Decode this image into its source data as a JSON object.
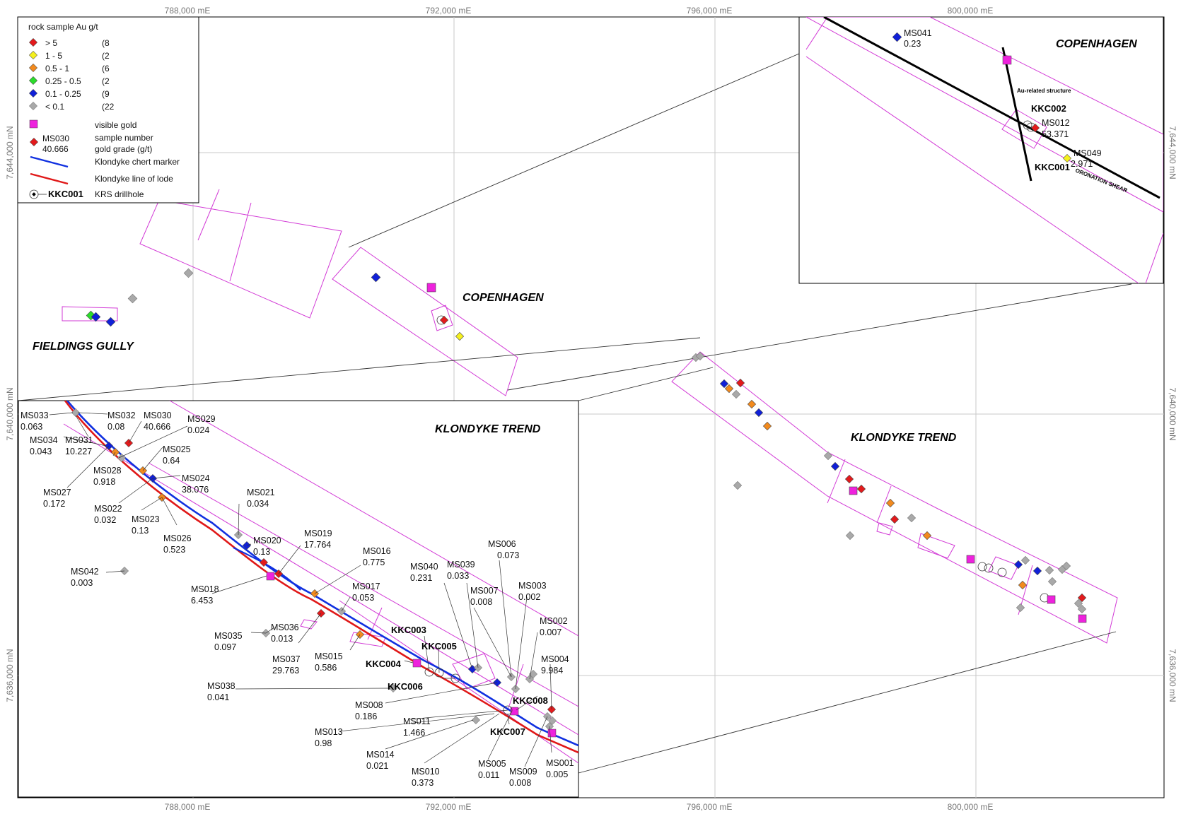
{
  "legend": {
    "title": "rock sample Au g/t",
    "classes": [
      {
        "label": "> 5",
        "count": "(8",
        "color": "#e31a1c"
      },
      {
        "label": "1    - 5",
        "count": "(2",
        "color": "#f5f01e"
      },
      {
        "label": "0.5   - 1",
        "count": "(6",
        "color": "#f28a1e"
      },
      {
        "label": "0.25 - 0.5",
        "count": "(2",
        "color": "#2bdc2b"
      },
      {
        "label": "0.1   - 0.25",
        "count": "(9",
        "color": "#1020d8"
      },
      {
        "label": "< 0.1",
        "count": "(22",
        "color": "#a9a9a9"
      }
    ],
    "visible_gold": "visible gold",
    "sample_number_example": "MS030",
    "gold_grade_example": "40.666",
    "sample_number_label": "sample number",
    "gold_grade_label": "gold grade (g/t)",
    "chert_label": "Klondyke chert marker",
    "lode_label": "Klondyke line of lode",
    "drillhole_example": "KKC001",
    "drillhole_label": "KRS drillhole"
  },
  "colors": {
    "visible_gold": "#ee22dd",
    "chert": "#1030e0",
    "lode": "#e01818",
    "lease": "#d23ad6",
    "grid": "#c8c8c8"
  },
  "coords": {
    "eastings": [
      "788,000 mE",
      "792,000 mE",
      "796,000 mE",
      "800,000 mE"
    ],
    "northings": [
      "7,644,000 mN",
      "7,640,000 mN",
      "7,636,000 mN"
    ]
  },
  "areas": {
    "copenhagen": "COPENHAGEN",
    "fieldings": "FIELDINGS GULLY",
    "klondyke": "KLONDYKE TREND",
    "copenhagen_inset": "COPENHAGEN",
    "klondyke_inset": "KLONDYKE TREND"
  },
  "copenhagen_inset": {
    "structure_label": "Au-related structure",
    "shear_label": "ORONATION SHEAR",
    "samples": [
      {
        "id": "MS041",
        "grade": "0.23",
        "class": "0.1-0.25"
      },
      {
        "id": "MS012",
        "grade": "53.371",
        "class": ">5"
      },
      {
        "id": "MS049",
        "grade": "2.971",
        "class": "1-5"
      }
    ],
    "drillholes": [
      "KKC002",
      "KKC001"
    ]
  },
  "klondyke_inset": {
    "samples": [
      {
        "id": "MS033",
        "grade": "0.063"
      },
      {
        "id": "MS032",
        "grade": "0.08"
      },
      {
        "id": "MS030",
        "grade": "40.666"
      },
      {
        "id": "MS029",
        "grade": "0.024"
      },
      {
        "id": "MS034",
        "grade": "0.043"
      },
      {
        "id": "MS031",
        "grade": "10.227"
      },
      {
        "id": "MS025",
        "grade": "0.64"
      },
      {
        "id": "MS028",
        "grade": "0.918"
      },
      {
        "id": "MS024",
        "grade": "38.076"
      },
      {
        "id": "MS027",
        "grade": "0.172"
      },
      {
        "id": "MS021",
        "grade": "0.034"
      },
      {
        "id": "MS022",
        "grade": "0.032"
      },
      {
        "id": "MS023",
        "grade": "0.13"
      },
      {
        "id": "MS026",
        "grade": "0.523"
      },
      {
        "id": "MS020",
        "grade": "0.13"
      },
      {
        "id": "MS019",
        "grade": "17.764"
      },
      {
        "id": "MS016",
        "grade": "0.775"
      },
      {
        "id": "MS006",
        "grade": "0.073"
      },
      {
        "id": "MS042",
        "grade": "0.003"
      },
      {
        "id": "MS040",
        "grade": "0.231"
      },
      {
        "id": "MS039",
        "grade": "0.033"
      },
      {
        "id": "MS018",
        "grade": "6.453"
      },
      {
        "id": "MS017",
        "grade": "0.053"
      },
      {
        "id": "MS007",
        "grade": "0.008"
      },
      {
        "id": "MS003",
        "grade": "0.002"
      },
      {
        "id": "MS002",
        "grade": "0.007"
      },
      {
        "id": "MS035",
        "grade": "0.097"
      },
      {
        "id": "MS036",
        "grade": "0.013"
      },
      {
        "id": "MS037",
        "grade": "29.763"
      },
      {
        "id": "MS015",
        "grade": "0.586"
      },
      {
        "id": "MS004",
        "grade": "9.984"
      },
      {
        "id": "MS038",
        "grade": "0.041"
      },
      {
        "id": "MS008",
        "grade": "0.186"
      },
      {
        "id": "MS011",
        "grade": "1.466"
      },
      {
        "id": "MS013",
        "grade": "0.98"
      },
      {
        "id": "MS014",
        "grade": "0.021"
      },
      {
        "id": "MS005",
        "grade": "0.011"
      },
      {
        "id": "MS009",
        "grade": "0.008"
      },
      {
        "id": "MS001",
        "grade": "0.005"
      },
      {
        "id": "MS010",
        "grade": "0.373"
      }
    ],
    "drillholes": [
      "KKC003",
      "KKC005",
      "KKC004",
      "KKC006",
      "KKC008",
      "KKC007"
    ]
  }
}
